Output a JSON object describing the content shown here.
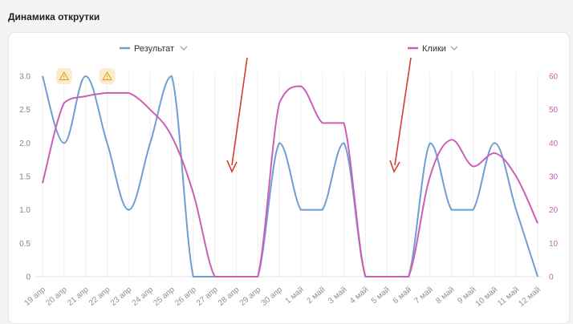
{
  "page": {
    "heading": "Динамика открутки"
  },
  "legend": [
    {
      "label": "Результат",
      "color": "#6d9fd3",
      "chevron": "chevron-down-icon"
    },
    {
      "label": "Клики",
      "color": "#cc5fb5",
      "chevron": "chevron-down-icon"
    }
  ],
  "warning_icon": "warning-triangle-icon",
  "annotation_color": "#d63b2e",
  "chart_data": {
    "type": "line",
    "categories": [
      "19 апр",
      "20 апр",
      "21 апр",
      "22 апр",
      "23 апр",
      "24 апр",
      "25 апр",
      "26 апр",
      "27 апр",
      "28 апр",
      "29 апр",
      "30 апр",
      "1 май",
      "2 май",
      "3 май",
      "4 май",
      "5 май",
      "6 май",
      "7 май",
      "8 май",
      "9 май",
      "10 май",
      "11 май",
      "12 май"
    ],
    "series": [
      {
        "name": "Результат",
        "axis": "left",
        "color": "#6d9fd3",
        "values": [
          3,
          2,
          3,
          2,
          1,
          2,
          3,
          0,
          0,
          0,
          0,
          2,
          1,
          1,
          2,
          0,
          0,
          0,
          2,
          1,
          1,
          2,
          1,
          0
        ]
      },
      {
        "name": "Клики",
        "axis": "right",
        "color": "#cc5fb5",
        "values": [
          28,
          52,
          54,
          55,
          55,
          50,
          42,
          25,
          0,
          0,
          0,
          52,
          57,
          46,
          46,
          0,
          0,
          0,
          30,
          41,
          33,
          37,
          30,
          16
        ]
      }
    ],
    "y_left": {
      "ticks": [
        "0",
        "0.5",
        "1.0",
        "1.5",
        "2.0",
        "2.5",
        "3.0"
      ],
      "ylim": [
        0,
        3
      ]
    },
    "y_right": {
      "ticks": [
        "0",
        "10",
        "20",
        "30",
        "40",
        "50",
        "60"
      ],
      "ylim": [
        0,
        60
      ]
    },
    "warning_markers_at": [
      "20 апр",
      "22 апр"
    ],
    "grid": "vertical",
    "legend_position": "top"
  }
}
